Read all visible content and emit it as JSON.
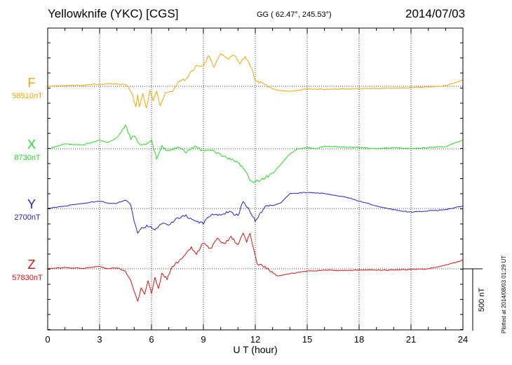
{
  "header": {
    "station": "Yellowknife (YKC)  [CGS]",
    "coords": "GG ( 62.47°, 245.53°)",
    "date": "2014/07/03"
  },
  "plot_stamp": "Plotted at 2014/08/03 01:29 UT",
  "scale_label": "500 nT",
  "chart_data": {
    "type": "line",
    "xlabel": "U T (hour)",
    "xlim": [
      0,
      24
    ],
    "xticks": [
      0,
      3,
      6,
      9,
      12,
      15,
      18,
      21,
      24
    ],
    "grid": true,
    "scale_bar_nT": 500,
    "series": [
      {
        "name": "F",
        "baseline": "58510nT",
        "color": "#f5a800",
        "x": [
          0,
          1,
          2,
          2.7,
          3,
          3.5,
          4,
          4.5,
          4.9,
          5.1,
          5.2,
          5.3,
          5.5,
          5.7,
          5.9,
          6.1,
          6.3,
          6.5,
          6.8,
          7.2,
          7.6,
          8,
          8.3,
          8.6,
          9,
          9.3,
          9.6,
          10,
          10.4,
          10.8,
          11.1,
          11.4,
          11.6,
          11.8,
          12,
          12.3,
          12.7,
          13.2,
          14,
          15,
          16,
          18,
          20,
          22,
          23,
          24
        ],
        "y": [
          0,
          6,
          8,
          18,
          12,
          22,
          18,
          14,
          -60,
          -170,
          -70,
          -160,
          -60,
          -180,
          -40,
          -110,
          -30,
          -150,
          -60,
          -40,
          40,
          60,
          120,
          160,
          170,
          240,
          160,
          260,
          220,
          250,
          180,
          240,
          200,
          150,
          40,
          30,
          0,
          -30,
          -40,
          -20,
          -25,
          -20,
          -15,
          -5,
          5,
          50
        ]
      },
      {
        "name": "X",
        "baseline": "8730nT",
        "color": "#22dd22",
        "x": [
          0,
          1,
          2,
          3,
          3.5,
          4,
          4.5,
          4.8,
          5,
          5.3,
          5.6,
          6,
          6.3,
          6.6,
          7,
          7.5,
          8,
          8.5,
          9,
          9.5,
          10,
          10.5,
          11,
          11.3,
          11.5,
          11.7,
          11.9,
          12.1,
          12.5,
          13,
          13.5,
          14,
          14.5,
          15,
          15.5,
          16,
          17,
          18,
          19,
          20,
          21,
          22,
          23,
          24
        ],
        "y": [
          0,
          40,
          30,
          70,
          50,
          90,
          190,
          80,
          110,
          40,
          30,
          60,
          -80,
          20,
          -20,
          10,
          -30,
          20,
          -20,
          -10,
          -50,
          -80,
          -110,
          -160,
          -200,
          -250,
          -280,
          -260,
          -240,
          -200,
          -120,
          -40,
          0,
          10,
          0,
          20,
          15,
          10,
          0,
          10,
          0,
          10,
          20,
          70
        ]
      },
      {
        "name": "Y",
        "baseline": "2700nT",
        "color": "#2222cc",
        "x": [
          0,
          1,
          2,
          3,
          3.5,
          4,
          4.5,
          4.8,
          5,
          5.2,
          5.5,
          5.8,
          6.2,
          6.6,
          7,
          7.5,
          8,
          8.5,
          9,
          9.5,
          10,
          10.5,
          11,
          11.3,
          11.6,
          12,
          12.3,
          12.6,
          13,
          13.5,
          14,
          15,
          16,
          17,
          18,
          19,
          20,
          21,
          22,
          23,
          24
        ],
        "y": [
          0,
          20,
          40,
          60,
          40,
          40,
          70,
          40,
          -100,
          -200,
          -150,
          -140,
          -180,
          -120,
          -130,
          -80,
          -60,
          -100,
          -120,
          -40,
          -60,
          -20,
          -60,
          60,
          0,
          -100,
          -40,
          30,
          20,
          50,
          120,
          130,
          120,
          100,
          60,
          20,
          -10,
          -30,
          -20,
          -10,
          20
        ]
      },
      {
        "name": "Z",
        "baseline": "57830nT",
        "color": "#dd1111",
        "x": [
          0,
          1,
          2,
          3,
          3.5,
          4,
          4.5,
          4.8,
          5,
          5.2,
          5.4,
          5.6,
          5.8,
          6,
          6.2,
          6.4,
          6.6,
          6.9,
          7.2,
          7.6,
          8,
          8.3,
          8.6,
          9,
          9.4,
          9.8,
          10.2,
          10.6,
          11,
          11.3,
          11.5,
          11.7,
          11.9,
          12.1,
          12.4,
          12.8,
          13.3,
          14,
          15,
          16,
          17,
          18,
          20,
          22,
          23,
          24
        ],
        "y": [
          0,
          10,
          5,
          20,
          0,
          10,
          -20,
          -100,
          -180,
          -260,
          -160,
          -210,
          -90,
          -200,
          -60,
          -160,
          -40,
          -80,
          20,
          60,
          120,
          170,
          120,
          210,
          160,
          240,
          200,
          260,
          190,
          290,
          220,
          290,
          160,
          40,
          30,
          -10,
          -60,
          -40,
          -20,
          -10,
          -15,
          -10,
          -10,
          0,
          30,
          70
        ]
      }
    ]
  }
}
